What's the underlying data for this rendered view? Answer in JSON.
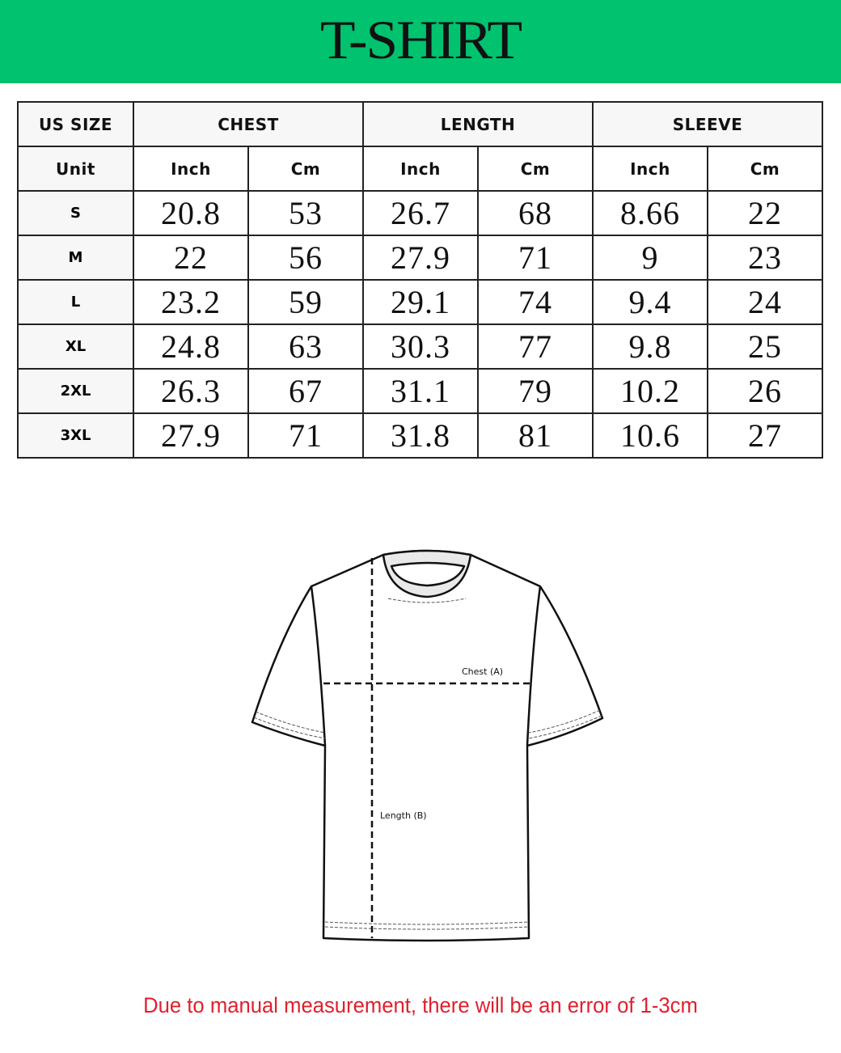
{
  "title": "T-SHIRT",
  "colors": {
    "banner": "#00c26f",
    "note": "#e0202e"
  },
  "table": {
    "headers": [
      "US SIZE",
      "CHEST",
      "LENGTH",
      "SLEEVE"
    ],
    "units": [
      "Unit",
      "Inch",
      "Cm",
      "Inch",
      "Cm",
      "Inch",
      "Cm"
    ],
    "rows": [
      [
        "S",
        "20.8",
        "53",
        "26.7",
        "68",
        "8.66",
        "22"
      ],
      [
        "M",
        "22",
        "56",
        "27.9",
        "71",
        "9",
        "23"
      ],
      [
        "L",
        "23.2",
        "59",
        "29.1",
        "74",
        "9.4",
        "24"
      ],
      [
        "XL",
        "24.8",
        "63",
        "30.3",
        "77",
        "9.8",
        "25"
      ],
      [
        "2XL",
        "26.3",
        "67",
        "31.1",
        "79",
        "10.2",
        "26"
      ],
      [
        "3XL",
        "27.9",
        "71",
        "31.8",
        "81",
        "10.6",
        "27"
      ]
    ]
  },
  "diagram": {
    "chest_label": "Chest (A)",
    "length_label": "Length (B)"
  },
  "note": "Due to manual measurement, there will be an error of 1-3cm"
}
